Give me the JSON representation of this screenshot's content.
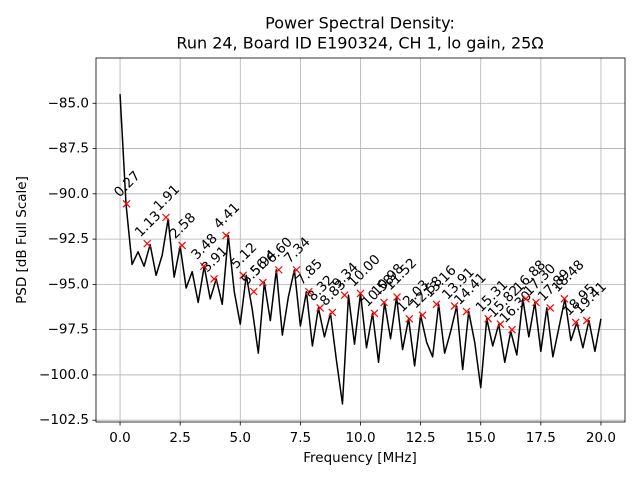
{
  "chart_data": {
    "type": "line",
    "title": [
      "Power Spectral Density:",
      "Run 24, Board ID E190324, CH 1, lo gain, 25Ω"
    ],
    "xlabel": "Frequency [MHz]",
    "ylabel": "PSD [dB Full Scale]",
    "xlim": [
      -1,
      21
    ],
    "ylim": [
      -102.6,
      -82.5
    ],
    "xticks": [
      {
        "value": 0,
        "label": "0.0"
      },
      2.5,
      {
        "value": 5,
        "label": "5.0"
      },
      7.5,
      {
        "value": 10,
        "label": "10.0"
      },
      12.5,
      {
        "value": 15,
        "label": "15.0"
      },
      17.5,
      {
        "value": 20,
        "label": "20.0"
      }
    ],
    "yticks": [
      {
        "value": -102.5,
        "label": "−102.5"
      },
      {
        "value": -100,
        "label": "−100.0"
      },
      {
        "value": -97.5,
        "label": "−97.5"
      },
      {
        "value": -95,
        "label": "−95.0"
      },
      {
        "value": -92.5,
        "label": "−92.5"
      },
      {
        "value": -90,
        "label": "−90.0"
      },
      {
        "value": -87.5,
        "label": "−87.5"
      },
      {
        "value": -85,
        "label": "−85.0"
      }
    ],
    "grid": true,
    "series": [
      {
        "type": "line",
        "color": "#000000",
        "x": [
          0,
          0.25,
          0.5,
          0.75,
          1,
          1.25,
          1.5,
          1.75,
          2,
          2.25,
          2.5,
          2.75,
          3,
          3.25,
          3.5,
          3.75,
          4,
          4.25,
          4.5,
          4.75,
          5,
          5.25,
          5.5,
          5.75,
          6,
          6.25,
          6.5,
          6.75,
          7,
          7.25,
          7.5,
          7.75,
          8,
          8.25,
          8.5,
          8.75,
          9,
          9.25,
          9.5,
          9.75,
          10,
          10.25,
          10.5,
          10.75,
          11,
          11.25,
          11.5,
          11.75,
          12,
          12.25,
          12.5,
          12.75,
          13,
          13.25,
          13.5,
          13.75,
          14,
          14.25,
          14.5,
          14.75,
          15,
          15.25,
          15.5,
          15.75,
          16,
          16.25,
          16.5,
          16.75,
          17,
          17.25,
          17.5,
          17.75,
          18,
          18.25,
          18.5,
          18.75,
          19,
          19.25,
          19.5,
          19.75,
          20
        ],
        "values": [
          -84.5,
          -90.6,
          -93.9,
          -93.2,
          -94.0,
          -92.8,
          -94.5,
          -93.4,
          -91.4,
          -94.6,
          -92.9,
          -95.2,
          -94.3,
          -96.0,
          -94.0,
          -95.8,
          -94.7,
          -96.1,
          -92.3,
          -95.4,
          -97.2,
          -94.5,
          -96.4,
          -98.8,
          -94.9,
          -97.0,
          -94.2,
          -97.8,
          -95.7,
          -94.2,
          -97.3,
          -95.4,
          -98.4,
          -96.3,
          -97.9,
          -96.6,
          -99.2,
          -101.6,
          -95.6,
          -98.3,
          -95.5,
          -98.5,
          -96.6,
          -99.3,
          -96.0,
          -98.0,
          -95.7,
          -98.6,
          -96.9,
          -99.5,
          -96.7,
          -98.2,
          -99.0,
          -96.1,
          -98.8,
          -97.6,
          -96.2,
          -99.7,
          -96.5,
          -98.2,
          -100.7,
          -96.9,
          -98.4,
          -97.2,
          -99.3,
          -97.6,
          -98.9,
          -95.8,
          -97.9,
          -96.0,
          -98.7,
          -96.3,
          -99.0,
          -97.4,
          -95.8,
          -98.1,
          -97.1,
          -98.5,
          -97.0,
          -98.7,
          -96.9
        ]
      },
      {
        "type": "scatter",
        "marker": "x",
        "color": "#ff0000",
        "x": [
          0.27,
          1.13,
          1.91,
          2.58,
          3.48,
          3.91,
          4.41,
          5.12,
          5.56,
          5.94,
          6.6,
          7.34,
          7.85,
          8.32,
          8.83,
          9.34,
          10.0,
          10.58,
          10.98,
          11.52,
          12.03,
          12.58,
          13.16,
          13.91,
          14.41,
          15.31,
          15.82,
          16.3,
          16.88,
          17.3,
          17.89,
          18.48,
          18.95,
          19.41
        ],
        "values": [
          -90.55,
          -92.75,
          -91.3,
          -92.85,
          -94.0,
          -94.7,
          -92.3,
          -94.5,
          -95.4,
          -94.9,
          -94.2,
          -94.2,
          -95.4,
          -96.3,
          -96.55,
          -95.6,
          -95.5,
          -96.6,
          -96.0,
          -95.7,
          -96.9,
          -96.7,
          -96.1,
          -96.2,
          -96.5,
          -96.9,
          -97.2,
          -97.5,
          -95.8,
          -96.0,
          -96.3,
          -95.8,
          -97.1,
          -97.0
        ],
        "labels": [
          "0.27",
          "1.13",
          "1.91",
          "2.58",
          "3.48",
          "3.91",
          "4.41",
          "5.12",
          "5.56",
          "5.94",
          "6.60",
          "7.34",
          "7.85",
          "8.32",
          "8.83",
          "9.34",
          "10.00",
          "10.58",
          "10.98",
          "11.52",
          "12.03",
          "12.58",
          "13.16",
          "13.91",
          "14.41",
          "15.31",
          "15.82",
          "16.30",
          "16.88",
          "17.30",
          "17.89",
          "18.48",
          "18.95",
          "19.41"
        ]
      }
    ]
  }
}
